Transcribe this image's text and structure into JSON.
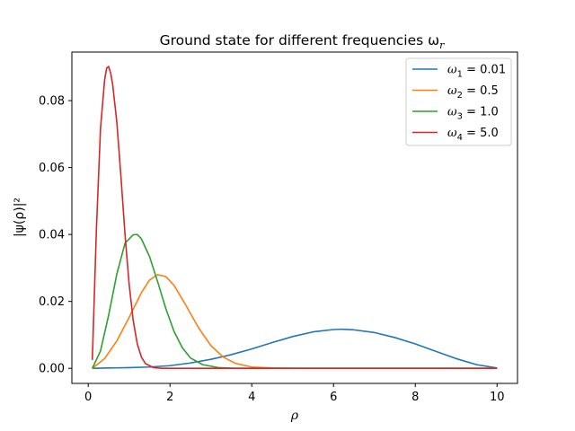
{
  "chart_data": {
    "type": "line",
    "title": "Ground state for different frequencies ω",
    "title_sub": "r",
    "xlabel": "ρ",
    "ylabel": "|ψ(ρ)|²",
    "xlim": [
      -0.4,
      10.5
    ],
    "ylim": [
      -0.0045,
      0.0945
    ],
    "xticks": [
      0,
      2,
      4,
      6,
      8,
      10
    ],
    "xtick_labels": [
      "0",
      "2",
      "4",
      "6",
      "8",
      "10"
    ],
    "yticks": [
      0.0,
      0.02,
      0.04,
      0.06,
      0.08
    ],
    "ytick_labels": [
      "0.00",
      "0.02",
      "0.04",
      "0.06",
      "0.08"
    ],
    "grid": false,
    "legend_position": "top-right",
    "series": [
      {
        "name": "ω1 = 0.01",
        "legend_symbol": "ω",
        "legend_sub": "1",
        "legend_value": " = 0.01",
        "color": "#1f77b4",
        "x": [
          0.1,
          0.5,
          1,
          1.5,
          2,
          2.5,
          3,
          3.5,
          4,
          4.5,
          5,
          5.5,
          6,
          6.2,
          6.5,
          7,
          7.5,
          8,
          8.5,
          9,
          9.5,
          10
        ],
        "y": [
          0.0,
          0.0001,
          0.0002,
          0.0004,
          0.0008,
          0.0016,
          0.0027,
          0.0041,
          0.0058,
          0.0077,
          0.0095,
          0.0109,
          0.0116,
          0.0117,
          0.0115,
          0.0107,
          0.0092,
          0.0073,
          0.0051,
          0.0029,
          0.0011,
          0.0001
        ]
      },
      {
        "name": "ω2 = 0.5",
        "legend_symbol": "ω",
        "legend_sub": "2",
        "legend_value": " = 0.5",
        "color": "#ff7f0e",
        "x": [
          0.1,
          0.4,
          0.7,
          1.0,
          1.3,
          1.5,
          1.7,
          1.9,
          2.1,
          2.4,
          2.7,
          3.0,
          3.3,
          3.6,
          4.0,
          4.5,
          5,
          6,
          8,
          10
        ],
        "y": [
          0.0,
          0.0029,
          0.0082,
          0.0152,
          0.0226,
          0.0264,
          0.028,
          0.0274,
          0.0248,
          0.0186,
          0.0121,
          0.0068,
          0.0034,
          0.0015,
          0.0004,
          0.0001,
          0.0,
          0.0,
          0.0,
          0.0
        ]
      },
      {
        "name": "ω3 = 1.0",
        "legend_symbol": "ω",
        "legend_sub": "3",
        "legend_value": " = 1.0",
        "color": "#2ca02c",
        "x": [
          0.1,
          0.3,
          0.5,
          0.7,
          0.9,
          1.1,
          1.2,
          1.3,
          1.5,
          1.7,
          1.9,
          2.1,
          2.3,
          2.5,
          2.8,
          3.2,
          3.6,
          4.0,
          5,
          6,
          8,
          10
        ],
        "y": [
          0.0,
          0.0052,
          0.0159,
          0.0282,
          0.0374,
          0.0399,
          0.04,
          0.0387,
          0.0334,
          0.0258,
          0.0178,
          0.011,
          0.0062,
          0.0031,
          0.0011,
          0.0002,
          0.0,
          0.0,
          0.0,
          0.0,
          0.0,
          0.0
        ]
      },
      {
        "name": "ω4 = 5.0",
        "legend_symbol": "ω",
        "legend_sub": "4",
        "legend_value": " = 5.0",
        "color": "#d62728",
        "x": [
          0.1,
          0.2,
          0.3,
          0.4,
          0.45,
          0.5,
          0.55,
          0.6,
          0.7,
          0.8,
          0.9,
          1.0,
          1.1,
          1.2,
          1.3,
          1.4,
          1.6,
          1.8,
          2.0,
          3,
          5,
          10
        ],
        "y": [
          0.0025,
          0.0415,
          0.0716,
          0.0861,
          0.0897,
          0.0902,
          0.0882,
          0.0846,
          0.0735,
          0.0573,
          0.04,
          0.0252,
          0.0143,
          0.0073,
          0.0034,
          0.0014,
          0.0002,
          0.0,
          0.0,
          0.0,
          0.0,
          0.0
        ]
      }
    ]
  }
}
